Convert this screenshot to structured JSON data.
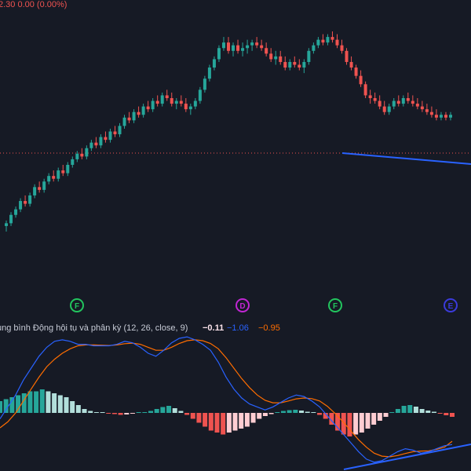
{
  "top_readout": "2.30  0.00 (0.00%)",
  "indicator": {
    "title": "ung bình Động hội tụ và phân kỳ (12, 26, close, 9)",
    "hist_value": "−0.11",
    "macd_value": "−1.06",
    "signal_value": "−0.95"
  },
  "markers": [
    {
      "letter": "F",
      "color": "#22c55e"
    },
    {
      "letter": "D",
      "color": "#c026d3"
    },
    {
      "letter": "F",
      "color": "#22c55e"
    },
    {
      "letter": "E",
      "color": "#3b3bdc"
    }
  ],
  "colors": {
    "background": "#161a25",
    "up": "#26a69a",
    "down": "#ef5350",
    "macd_line": "#2962ff",
    "signal_line": "#ff6d00",
    "trendline": "#2962ff",
    "price_line": "#ef5350"
  },
  "chart_data": [
    {
      "type": "candlestick",
      "description_series": "price",
      "candles": [
        [
          20,
          22,
          18,
          21
        ],
        [
          21,
          25,
          20,
          24
        ],
        [
          24,
          27,
          23,
          26
        ],
        [
          26,
          30,
          25,
          29
        ],
        [
          29,
          31,
          27,
          28
        ],
        [
          28,
          32,
          27,
          31
        ],
        [
          31,
          35,
          30,
          34
        ],
        [
          34,
          36,
          32,
          33
        ],
        [
          33,
          37,
          32,
          36
        ],
        [
          36,
          39,
          35,
          38
        ],
        [
          38,
          40,
          36,
          37
        ],
        [
          37,
          41,
          36,
          40
        ],
        [
          40,
          42,
          38,
          39
        ],
        [
          39,
          43,
          38,
          42
        ],
        [
          42,
          45,
          41,
          44
        ],
        [
          44,
          47,
          43,
          46
        ],
        [
          46,
          48,
          44,
          45
        ],
        [
          45,
          49,
          44,
          48
        ],
        [
          48,
          51,
          47,
          50
        ],
        [
          50,
          52,
          48,
          49
        ],
        [
          49,
          53,
          48,
          52
        ],
        [
          52,
          54,
          50,
          51
        ],
        [
          51,
          55,
          50,
          54
        ],
        [
          54,
          56,
          52,
          53
        ],
        [
          53,
          57,
          52,
          56
        ],
        [
          56,
          60,
          55,
          59
        ],
        [
          59,
          61,
          57,
          58
        ],
        [
          58,
          62,
          57,
          61
        ],
        [
          61,
          63,
          59,
          60
        ],
        [
          60,
          64,
          59,
          63
        ],
        [
          63,
          65,
          61,
          62
        ],
        [
          62,
          66,
          61,
          65
        ],
        [
          65,
          67,
          63,
          64
        ],
        [
          64,
          68,
          63,
          67
        ],
        [
          67,
          69,
          65,
          66
        ],
        [
          66,
          68,
          63,
          64
        ],
        [
          64,
          66,
          62,
          65
        ],
        [
          65,
          67,
          63,
          64
        ],
        [
          64,
          66,
          61,
          62
        ],
        [
          62,
          64,
          60,
          63
        ],
        [
          63,
          66,
          62,
          65
        ],
        [
          65,
          70,
          64,
          69
        ],
        [
          69,
          74,
          68,
          73
        ],
        [
          73,
          78,
          72,
          77
        ],
        [
          77,
          81,
          76,
          80
        ],
        [
          80,
          85,
          79,
          84
        ],
        [
          84,
          88,
          83,
          86
        ],
        [
          86,
          88,
          82,
          83
        ],
        [
          83,
          86,
          81,
          85
        ],
        [
          85,
          87,
          82,
          83
        ],
        [
          83,
          86,
          81,
          84
        ],
        [
          84,
          87,
          82,
          85
        ],
        [
          85,
          87,
          83,
          86
        ],
        [
          86,
          88,
          84,
          85
        ],
        [
          85,
          87,
          83,
          84
        ],
        [
          84,
          86,
          81,
          82
        ],
        [
          82,
          84,
          79,
          80
        ],
        [
          80,
          83,
          78,
          81
        ],
        [
          81,
          83,
          78,
          79
        ],
        [
          79,
          81,
          76,
          77
        ],
        [
          77,
          80,
          76,
          79
        ],
        [
          79,
          81,
          77,
          78
        ],
        [
          78,
          80,
          76,
          77
        ],
        [
          77,
          80,
          75,
          79
        ],
        [
          79,
          84,
          78,
          83
        ],
        [
          83,
          86,
          82,
          85
        ],
        [
          85,
          88,
          84,
          87
        ],
        [
          87,
          89,
          85,
          86
        ],
        [
          86,
          89,
          85,
          88
        ],
        [
          88,
          90,
          86,
          87
        ],
        [
          87,
          89,
          84,
          85
        ],
        [
          85,
          87,
          82,
          83
        ],
        [
          83,
          84,
          78,
          79
        ],
        [
          79,
          81,
          76,
          77
        ],
        [
          77,
          78,
          73,
          74
        ],
        [
          74,
          76,
          70,
          71
        ],
        [
          71,
          72,
          66,
          67
        ],
        [
          67,
          69,
          64,
          66
        ],
        [
          66,
          68,
          64,
          65
        ],
        [
          65,
          67,
          62,
          63
        ],
        [
          63,
          65,
          60,
          61
        ],
        [
          61,
          64,
          60,
          63
        ],
        [
          63,
          66,
          62,
          65
        ],
        [
          65,
          67,
          63,
          64
        ],
        [
          64,
          67,
          63,
          66
        ],
        [
          66,
          68,
          64,
          65
        ],
        [
          65,
          67,
          63,
          64
        ],
        [
          64,
          66,
          62,
          63
        ],
        [
          63,
          65,
          61,
          62
        ],
        [
          62,
          64,
          60,
          61
        ],
        [
          61,
          63,
          59,
          60
        ],
        [
          60,
          62,
          58,
          59
        ],
        [
          59,
          61,
          58,
          60
        ],
        [
          60,
          61,
          58,
          59
        ],
        [
          59,
          61,
          58,
          60
        ]
      ]
    },
    {
      "type": "histogram",
      "description_series": "MACD histogram",
      "values": [
        0.3,
        0.35,
        0.4,
        0.45,
        0.5,
        0.55,
        0.55,
        0.6,
        0.55,
        0.5,
        0.45,
        0.4,
        0.3,
        0.2,
        0.1,
        0.05,
        0.02,
        0.01,
        -0.02,
        -0.03,
        -0.05,
        -0.04,
        -0.02,
        0.0,
        0.02,
        0.05,
        0.1,
        0.15,
        0.18,
        0.12,
        0.05,
        -0.05,
        -0.15,
        -0.25,
        -0.35,
        -0.45,
        -0.5,
        -0.55,
        -0.5,
        -0.45,
        -0.4,
        -0.35,
        -0.25,
        -0.15,
        -0.08,
        -0.03,
        0.02,
        0.05,
        0.07,
        0.08,
        0.06,
        0.03,
        0.0,
        -0.05,
        -0.15,
        -0.3,
        -0.45,
        -0.55,
        -0.6,
        -0.55,
        -0.5,
        -0.4,
        -0.3,
        -0.2,
        -0.1,
        0.02,
        0.1,
        0.18,
        0.2,
        0.16,
        0.1,
        0.06,
        0.03,
        -0.02,
        -0.06,
        -0.1
      ]
    },
    {
      "type": "line",
      "series": [
        {
          "name": "MACD",
          "values": [
            -0.2,
            0.2,
            0.6,
            1.1,
            1.5,
            1.9,
            2.2,
            2.4,
            2.45,
            2.4,
            2.3,
            2.3,
            2.25,
            2.25,
            2.25,
            2.3,
            2.4,
            2.35,
            2.2,
            2.0,
            1.9,
            2.1,
            2.35,
            2.5,
            2.55,
            2.45,
            2.3,
            2.1,
            1.7,
            1.2,
            0.8,
            0.5,
            0.3,
            0.2,
            0.1,
            0.2,
            0.35,
            0.5,
            0.6,
            0.55,
            0.4,
            0.2,
            -0.1,
            -0.4,
            -0.7,
            -1.0,
            -1.3,
            -1.55,
            -1.65,
            -1.6,
            -1.45,
            -1.3,
            -1.2,
            -1.25,
            -1.35,
            -1.3,
            -1.2,
            -1.1,
            -1.06
          ]
        },
        {
          "name": "Signal",
          "values": [
            -0.5,
            -0.3,
            0.0,
            0.4,
            0.8,
            1.2,
            1.55,
            1.8,
            2.0,
            2.15,
            2.25,
            2.28,
            2.28,
            2.27,
            2.26,
            2.28,
            2.32,
            2.34,
            2.3,
            2.2,
            2.1,
            2.1,
            2.2,
            2.33,
            2.42,
            2.45,
            2.42,
            2.33,
            2.15,
            1.85,
            1.5,
            1.15,
            0.85,
            0.6,
            0.42,
            0.34,
            0.34,
            0.4,
            0.47,
            0.5,
            0.48,
            0.4,
            0.22,
            -0.02,
            -0.3,
            -0.6,
            -0.9,
            -1.15,
            -1.35,
            -1.45,
            -1.47,
            -1.43,
            -1.36,
            -1.3,
            -1.28,
            -1.27,
            -1.22,
            -1.15,
            -0.95
          ]
        }
      ]
    }
  ]
}
